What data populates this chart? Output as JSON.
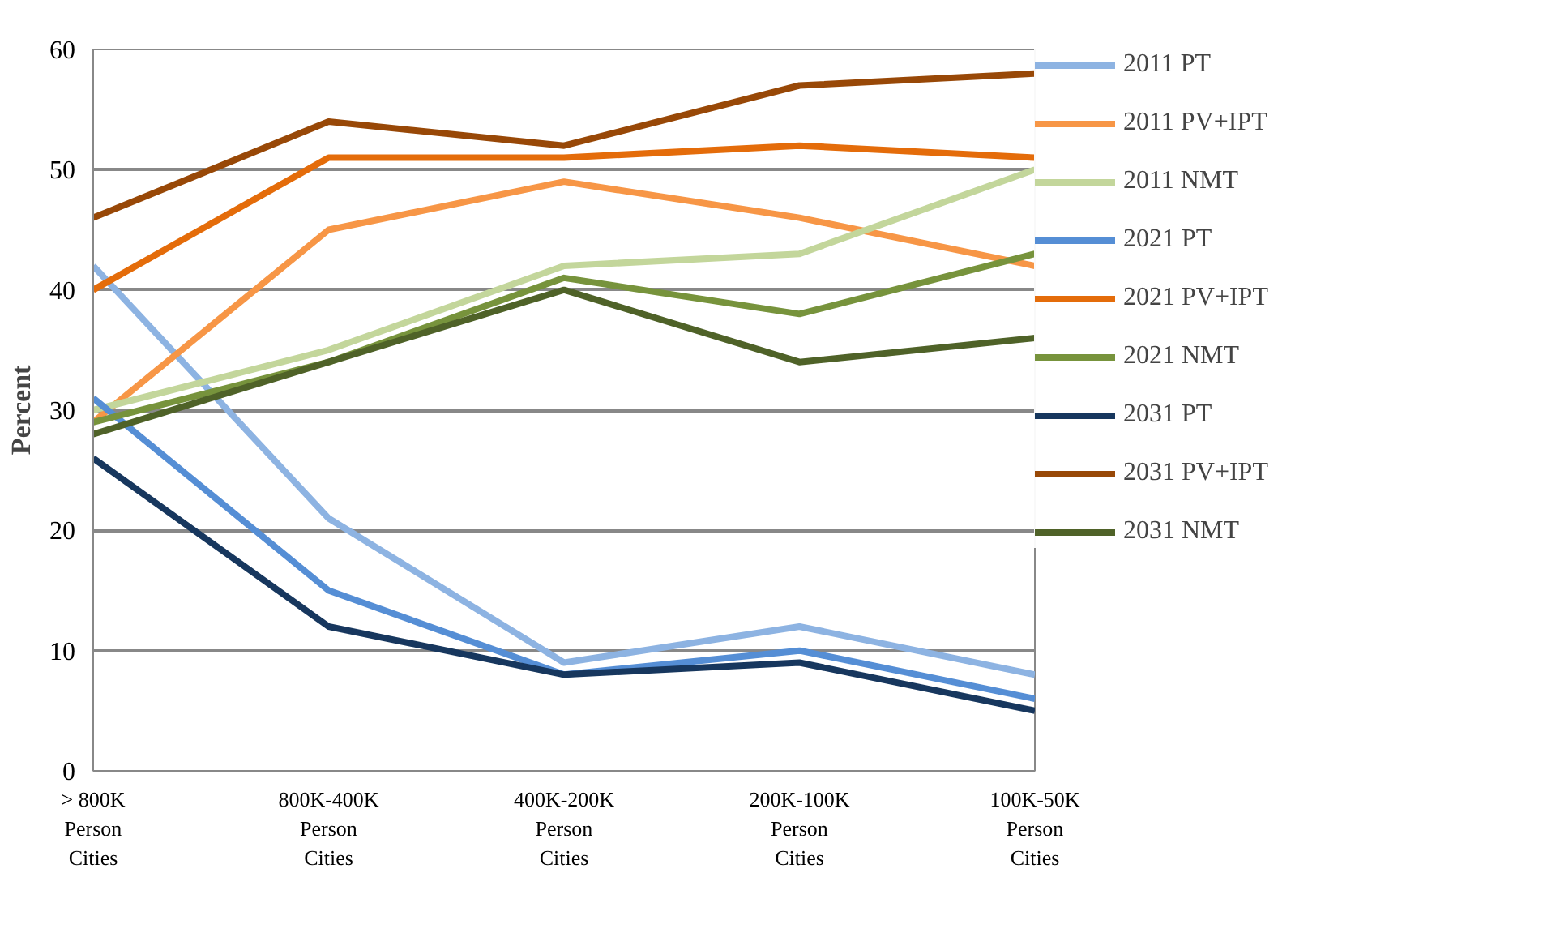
{
  "chart_data": {
    "type": "line",
    "ylabel": "Percent",
    "categories": [
      "> 800K\nPerson\nCities",
      "800K-400K\nPerson\nCities",
      "400K-200K\nPerson\nCities",
      "200K-100K\nPerson\nCities",
      "100K-50K\nPerson\nCities"
    ],
    "ylim": [
      0,
      60
    ],
    "yticks": [
      0,
      10,
      20,
      30,
      40,
      50,
      60
    ],
    "grid": "y",
    "legend": "right",
    "marker": "none",
    "line_style": "solid",
    "series": [
      {
        "name": "2011 PT",
        "color": "#8db3e2",
        "values": [
          42,
          21,
          9,
          12,
          8
        ]
      },
      {
        "name": "2011 PV+IPT",
        "color": "#f79646",
        "values": [
          29,
          45,
          49,
          46,
          42
        ]
      },
      {
        "name": "2011 NMT",
        "color": "#c3d69b",
        "values": [
          30,
          35,
          42,
          43,
          50
        ]
      },
      {
        "name": "2021 PT",
        "color": "#558ed5",
        "values": [
          31,
          15,
          8,
          10,
          6
        ]
      },
      {
        "name": "2021 PV+IPT",
        "color": "#e46c0a",
        "values": [
          40,
          51,
          51,
          52,
          51
        ]
      },
      {
        "name": "2021 NMT",
        "color": "#77933c",
        "values": [
          29,
          34,
          41,
          38,
          43
        ]
      },
      {
        "name": "2031 PT",
        "color": "#17375e",
        "values": [
          26,
          12,
          8,
          9,
          5
        ]
      },
      {
        "name": "2031 PV+IPT",
        "color": "#984807",
        "values": [
          46,
          54,
          52,
          57,
          58
        ]
      },
      {
        "name": "2031 NMT",
        "color": "#4f6228",
        "values": [
          28,
          34,
          40,
          34,
          36
        ]
      }
    ]
  }
}
